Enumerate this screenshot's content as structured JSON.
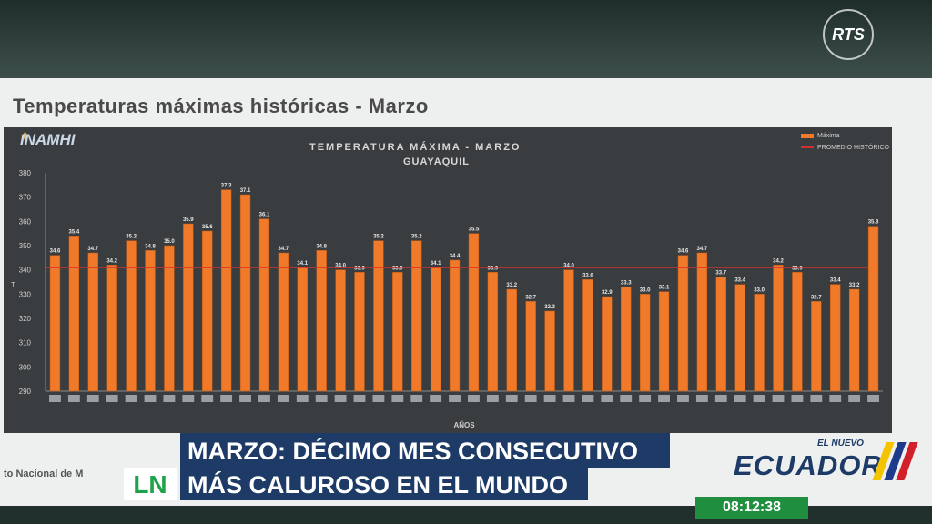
{
  "slide_title": "Temperaturas máximas históricas - Marzo",
  "logo_text": "INAMHI",
  "footer_left": "to Nacional de M",
  "broadcaster": "RTS",
  "lower_third": {
    "line1": "MARZO: DÉCIMO MES CONSECUTIVO",
    "line2": "MÁS CALUROSO EN EL MUNDO"
  },
  "show_logo": "LN",
  "gov_logo": {
    "small": "EL NUEVO",
    "big": "ECUADOR"
  },
  "clock": "08:12:38",
  "colors": {
    "bar": "#f07a2a",
    "mean_line": "#d03030",
    "chart_bg": "#3a3d3f",
    "banner": "#1d3b66",
    "clock": "#1f8f3f"
  },
  "chart_data": {
    "type": "bar",
    "title": "TEMPERATURA MÁXIMA - MARZO",
    "subtitle": "GUAYAQUIL",
    "xlabel": "AÑOS",
    "ylabel": "T",
    "yticks": [
      "290",
      "300",
      "310",
      "320",
      "330",
      "340",
      "350",
      "360",
      "370",
      "380"
    ],
    "ylim": [
      290,
      380
    ],
    "legend": [
      "Máxima",
      "PROMEDIO HISTÓRICO"
    ],
    "legend_position": "top-right",
    "mean_value": 341,
    "values": [
      34.6,
      35.4,
      34.7,
      34.2,
      35.2,
      34.8,
      35.0,
      35.9,
      35.6,
      37.3,
      37.1,
      36.1,
      34.7,
      34.1,
      34.8,
      34.0,
      33.9,
      35.2,
      33.9,
      35.2,
      34.1,
      34.4,
      35.5,
      33.9,
      33.2,
      32.7,
      32.3,
      34.0,
      33.6,
      32.9,
      33.3,
      33.0,
      33.1,
      34.6,
      34.7,
      33.7,
      33.4,
      33.0,
      34.2,
      33.9,
      32.7,
      33.4,
      33.2,
      35.8
    ],
    "value_labels": [
      "34.6",
      "35.4",
      "34.7",
      "34.2",
      "35.2",
      "34.8",
      "35.0",
      "35.9",
      "35.6",
      "37.3",
      "37.1",
      "36.1",
      "34.7",
      "34.1",
      "34.8",
      "34.0",
      "33.9",
      "35.2",
      "33.9",
      "35.2",
      "34.1",
      "34.4",
      "35.5",
      "33.9",
      "33.2",
      "32.7",
      "32.3",
      "34.0",
      "33.6",
      "32.9",
      "33.3",
      "33.0",
      "33.1",
      "34.6",
      "34.7",
      "33.7",
      "33.4",
      "33.0",
      "34.2",
      "33.9",
      "32.7",
      "33.4",
      "33.2",
      "35.8"
    ],
    "grid": false
  }
}
